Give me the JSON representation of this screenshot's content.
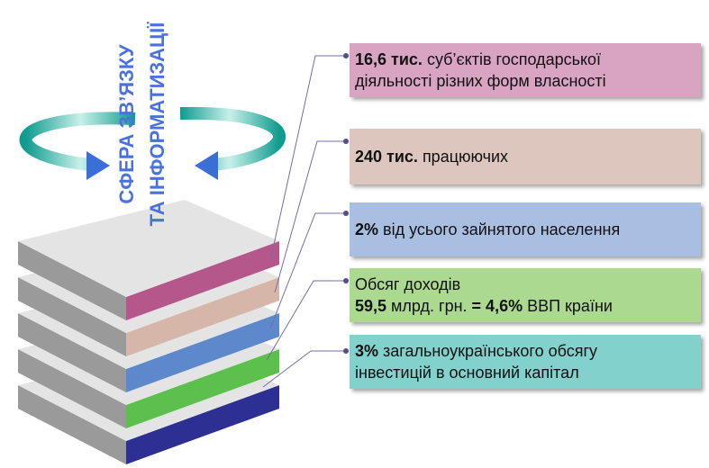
{
  "title": {
    "lines": [
      "СФЕРА ЗВ’ЯЗКУ",
      "ТА ІНФОРМАТИЗАЦІЇ"
    ]
  },
  "boxes": [
    {
      "color": "#d8a4c2",
      "lines": [
        [
          {
            "text": "16,6 тис.",
            "bold": true
          },
          {
            "text": " суб’єктів господарської",
            "bold": false
          }
        ],
        [
          {
            "text": "діяльності різних форм власності",
            "bold": false
          }
        ]
      ]
    },
    {
      "color": "#dcc6be",
      "lines": [
        [
          {
            "text": "240 тис.",
            "bold": true
          },
          {
            "text": " працюючих",
            "bold": false
          }
        ]
      ]
    },
    {
      "color": "#a9bfe2",
      "lines": [
        [
          {
            "text": "2%",
            "bold": true
          },
          {
            "text": " від усього зайнятого населення",
            "bold": false
          }
        ]
      ]
    },
    {
      "color": "#abd990",
      "lines": [
        [
          {
            "text": "Обсяг доходів",
            "bold": false
          }
        ],
        [
          {
            "text": "59,5",
            "bold": true
          },
          {
            "text": " млрд. грн. ",
            "bold": false
          },
          {
            "text": "= 4,6%",
            "bold": true
          },
          {
            "text": " ВВП країни",
            "bold": false
          }
        ]
      ]
    },
    {
      "color": "#82d1cd",
      "lines": [
        [
          {
            "text": "3%",
            "bold": true
          },
          {
            "text": " загальноукраїнського обсягу",
            "bold": false
          }
        ],
        [
          {
            "text": "інвестицій в основний капітал",
            "bold": false
          }
        ]
      ]
    }
  ]
}
